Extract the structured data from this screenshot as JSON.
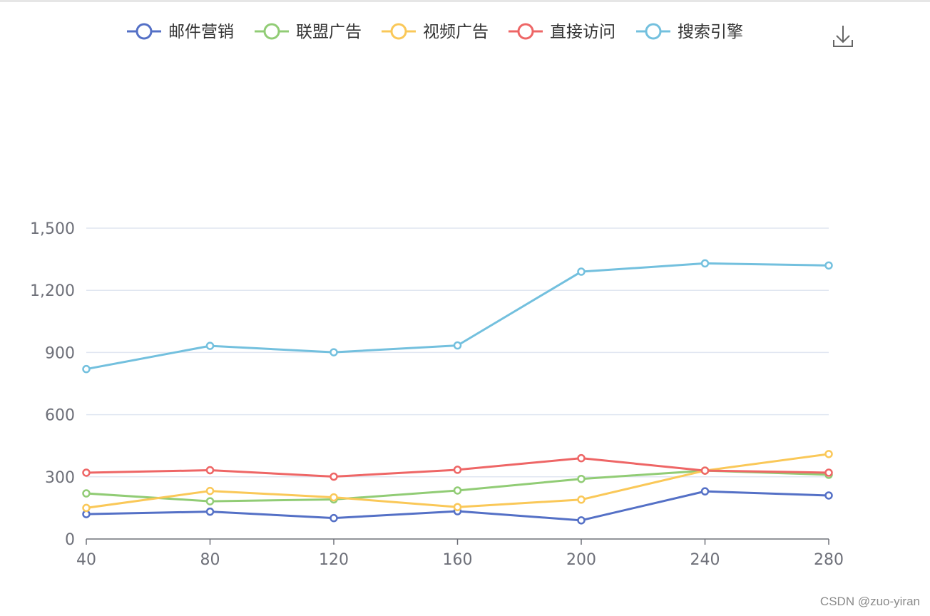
{
  "chart_data": {
    "type": "line",
    "x": [
      40,
      80,
      120,
      160,
      200,
      240,
      280
    ],
    "xlim": [
      40,
      280
    ],
    "ylim": [
      0,
      1500
    ],
    "yticks": [
      0,
      300,
      600,
      900,
      1200,
      1500
    ],
    "ytick_labels": [
      "0",
      "300",
      "600",
      "900",
      "1,200",
      "1,500"
    ],
    "grid": true,
    "legend_position": "top",
    "series": [
      {
        "name": "邮件营销",
        "color": "#5470c6",
        "values": [
          120,
          132,
          101,
          134,
          90,
          230,
          210
        ]
      },
      {
        "name": "联盟广告",
        "color": "#91cc75",
        "values": [
          220,
          182,
          191,
          234,
          290,
          330,
          310
        ]
      },
      {
        "name": "视频广告",
        "color": "#fac858",
        "values": [
          150,
          232,
          201,
          154,
          190,
          330,
          410
        ]
      },
      {
        "name": "直接访问",
        "color": "#ee6666",
        "values": [
          320,
          332,
          301,
          334,
          390,
          330,
          320
        ]
      },
      {
        "name": "搜索引擎",
        "color": "#73c0de",
        "values": [
          820,
          932,
          901,
          934,
          1290,
          1330,
          1320
        ]
      }
    ]
  },
  "toolbox": {
    "download_icon": "download-icon"
  },
  "watermark": "CSDN @zuo-yiran"
}
